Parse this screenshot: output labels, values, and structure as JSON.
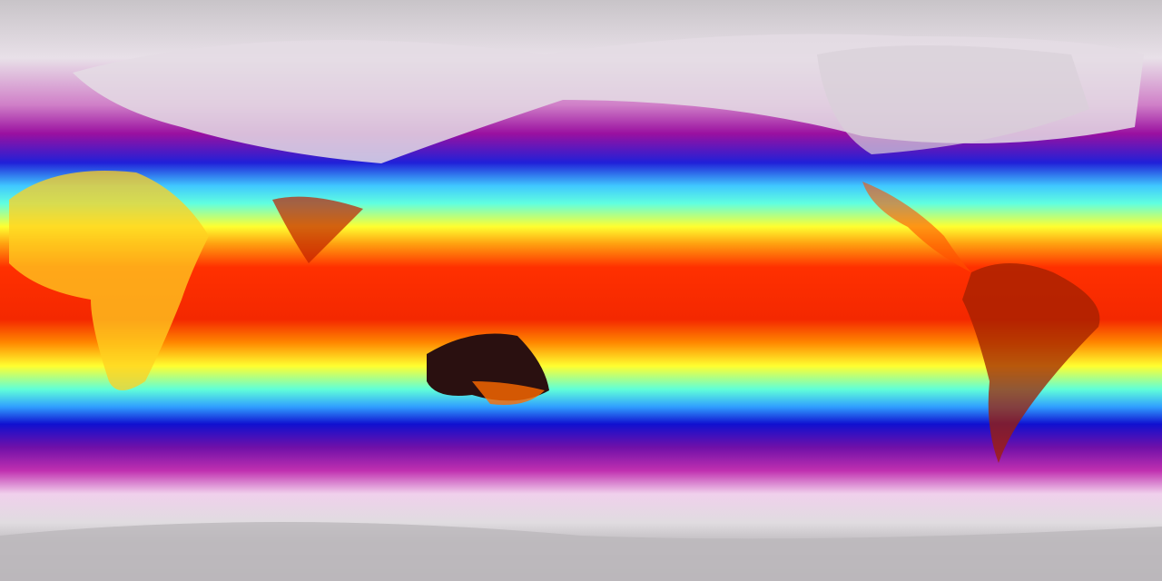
{
  "map": {
    "projection": "equirectangular",
    "variable": "temperature",
    "colormap": [
      "#c8c4c8",
      "#f0dcec",
      "#b0189c",
      "#6a0aa8",
      "#1414d8",
      "#3cb4ff",
      "#50f8e8",
      "#ffff28",
      "#ffa010",
      "#ff4000",
      "#e01800",
      "#301010"
    ],
    "ice_color": "#c0bcc4",
    "hot_desert_color": "#2a1010"
  }
}
